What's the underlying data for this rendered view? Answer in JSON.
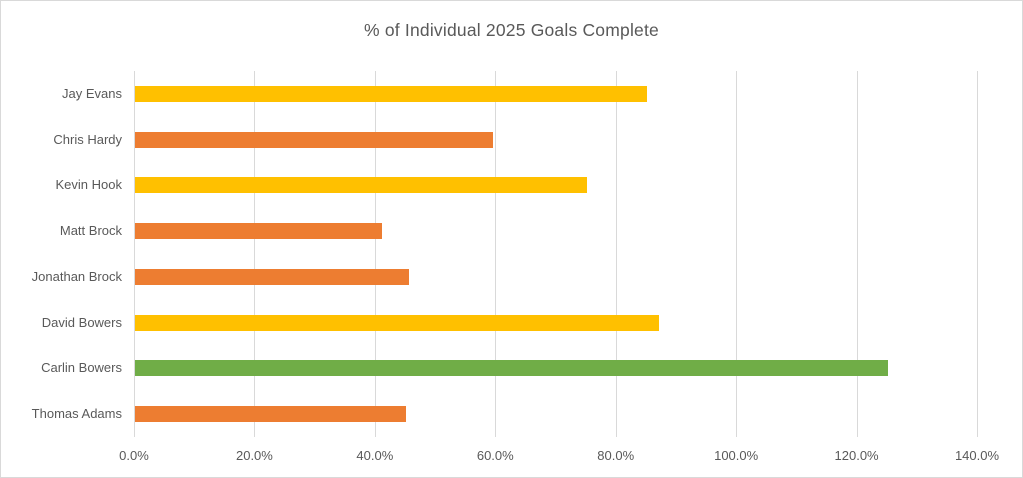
{
  "chart_data": {
    "type": "bar",
    "orientation": "horizontal",
    "title": "% of Individual 2025 Goals Complete",
    "categories": [
      "Jay Evans",
      "Chris Hardy",
      "Kevin Hook",
      "Matt Brock",
      "Jonathan Brock",
      "David Bowers",
      "Carlin Bowers",
      "Thomas Adams"
    ],
    "values": [
      85.0,
      59.5,
      75.0,
      41.0,
      45.5,
      87.0,
      125.0,
      45.0
    ],
    "unit": "%",
    "bar_colors": [
      "#FFC000",
      "#ED7D31",
      "#FFC000",
      "#ED7D31",
      "#ED7D31",
      "#FFC000",
      "#70AD47",
      "#ED7D31"
    ],
    "xlabel": "",
    "ylabel": "",
    "xlim": [
      0,
      140
    ],
    "x_ticks": [
      0,
      20,
      40,
      60,
      80,
      100,
      120,
      140
    ],
    "x_tick_labels": [
      "0.0%",
      "20.0%",
      "40.0%",
      "60.0%",
      "80.0%",
      "100.0%",
      "120.0%",
      "140.0%"
    ],
    "grid": "vertical-only",
    "legend": "none",
    "styles": {
      "gridline_color": "#D9D9D9",
      "text_color": "#595959",
      "background": "#FFFFFF",
      "chart_border_color": "#D9D9D9"
    }
  }
}
